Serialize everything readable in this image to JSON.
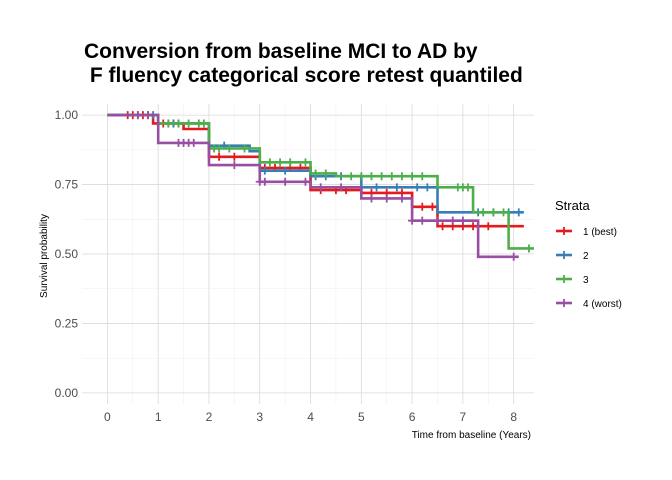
{
  "chart_data": {
    "type": "line",
    "step": true,
    "title_lines": [
      "Conversion from baseline MCI to AD by",
      " F fluency categorical score retest quantiled"
    ],
    "xlabel": "Time from baseline (Years)",
    "ylabel": "Survival probability",
    "xlim": [
      -0.5,
      8.4
    ],
    "ylim": [
      -0.04,
      1.04
    ],
    "x_ticks": [
      0,
      1,
      2,
      3,
      4,
      5,
      6,
      7,
      8
    ],
    "x_tick_labels": [
      "0",
      "1",
      "2",
      "3",
      "4",
      "5",
      "6",
      "7",
      "8"
    ],
    "y_ticks": [
      0,
      0.25,
      0.5,
      0.75,
      1
    ],
    "y_tick_labels": [
      "0.00",
      "0.25",
      "0.50",
      "0.75",
      "1.00"
    ],
    "grid": true,
    "legend": {
      "title": "Strata",
      "position": "right",
      "labels": [
        "1 (best)",
        "2",
        "3",
        "4 (worst)"
      ]
    },
    "series": [
      {
        "name": "1 (best)",
        "color": "#e41a1c",
        "steps": [
          [
            0,
            1.0
          ],
          [
            0.9,
            0.97
          ],
          [
            1.5,
            0.95
          ],
          [
            2.0,
            0.85
          ],
          [
            3.0,
            0.81
          ],
          [
            4.0,
            0.73
          ],
          [
            5.0,
            0.72
          ],
          [
            6.0,
            0.67
          ],
          [
            6.5,
            0.6
          ],
          [
            8.2,
            0.6
          ]
        ],
        "censor": [
          0.4,
          0.5,
          0.6,
          0.7,
          0.8,
          1.1,
          1.2,
          1.3,
          1.4,
          2.2,
          2.5,
          3.1,
          3.3,
          3.6,
          3.8,
          4.2,
          4.5,
          4.7,
          5.2,
          5.5,
          5.8,
          6.2,
          6.4,
          6.6,
          6.8,
          7.0,
          7.2,
          7.5
        ]
      },
      {
        "name": "2",
        "color": "#377eb8",
        "steps": [
          [
            0,
            1.0
          ],
          [
            1.0,
            0.97
          ],
          [
            2.0,
            0.89
          ],
          [
            2.8,
            0.87
          ],
          [
            3.0,
            0.8
          ],
          [
            4.0,
            0.78
          ],
          [
            5.0,
            0.74
          ],
          [
            6.5,
            0.65
          ],
          [
            8.2,
            0.65
          ]
        ],
        "censor": [
          0.9,
          1.3,
          2.3,
          3.1,
          3.5,
          4.1,
          4.3,
          4.6,
          5.0,
          5.3,
          5.7,
          6.1,
          6.3,
          7.3,
          7.6,
          7.9,
          8.1
        ]
      },
      {
        "name": "3",
        "color": "#4daf4a",
        "steps": [
          [
            0,
            1.0
          ],
          [
            1.0,
            0.97
          ],
          [
            2.0,
            0.88
          ],
          [
            3.0,
            0.83
          ],
          [
            4.0,
            0.79
          ],
          [
            4.5,
            0.78
          ],
          [
            6.5,
            0.74
          ],
          [
            7.2,
            0.65
          ],
          [
            7.9,
            0.52
          ],
          [
            8.4,
            0.52
          ]
        ],
        "censor": [
          1.2,
          1.4,
          1.6,
          1.8,
          1.9,
          2.1,
          2.2,
          2.4,
          2.7,
          3.2,
          3.4,
          3.6,
          3.9,
          4.1,
          4.3,
          4.8,
          5.0,
          5.2,
          5.4,
          5.6,
          5.8,
          6.0,
          6.2,
          6.9,
          7.0,
          7.1,
          7.4,
          7.6,
          7.8,
          8.3
        ]
      },
      {
        "name": "4 (worst)",
        "color": "#984ea3",
        "steps": [
          [
            0,
            1.0
          ],
          [
            1.0,
            0.9
          ],
          [
            2.0,
            0.82
          ],
          [
            3.0,
            0.76
          ],
          [
            4.0,
            0.74
          ],
          [
            5.0,
            0.7
          ],
          [
            6.0,
            0.62
          ],
          [
            7.3,
            0.49
          ],
          [
            8.1,
            0.49
          ]
        ],
        "censor": [
          0.6,
          0.8,
          1.4,
          1.5,
          1.6,
          1.7,
          2.5,
          3.0,
          3.1,
          3.5,
          3.9,
          4.2,
          4.6,
          5.2,
          5.5,
          5.8,
          6.0,
          6.2,
          6.5,
          6.8,
          7.0,
          8.0
        ]
      }
    ]
  }
}
